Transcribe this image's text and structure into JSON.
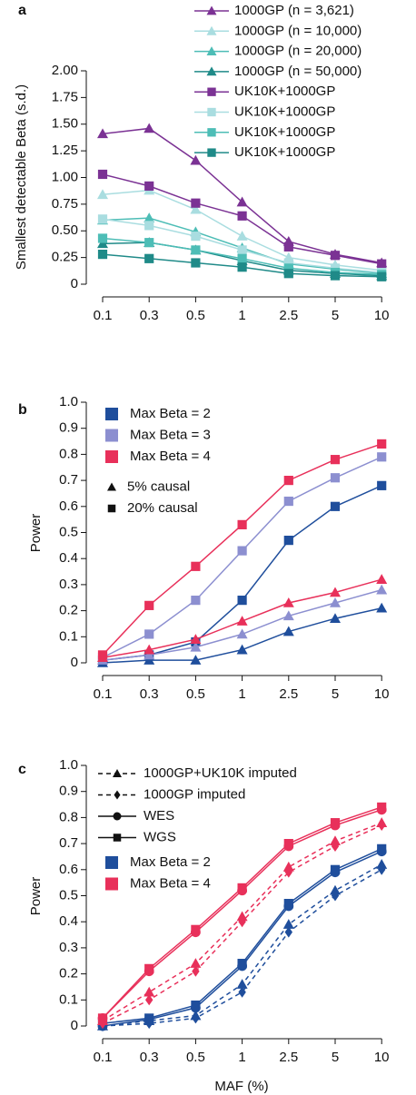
{
  "chart_data": [
    {
      "type": "line",
      "panel_label": "a",
      "y_label": "Smallest detectable Beta (s.d.)",
      "categories": [
        "0.1",
        "0.3",
        "0.5",
        "1",
        "2.5",
        "5",
        "10"
      ],
      "ylim": [
        0,
        2
      ],
      "yticks": [
        0,
        0.25,
        {
          "value": 0.5,
          "label": "0.50"
        },
        0.75,
        {
          "value": 1,
          "label": "1.00"
        },
        1.25,
        {
          "value": 1.5,
          "label": "1.50"
        },
        1.75,
        {
          "value": 2,
          "label": "2.00"
        }
      ],
      "series": [
        {
          "name": "1000GP (n = 3,621)",
          "color": "#7b3294",
          "marker": "triangle",
          "values": [
            1.41,
            1.46,
            1.16,
            0.77,
            0.4,
            0.28,
            0.2
          ]
        },
        {
          "name": "1000GP (n = 10,000)",
          "color": "#a9dde0",
          "marker": "triangle",
          "values": [
            0.84,
            0.88,
            0.7,
            0.45,
            0.25,
            0.18,
            0.13
          ]
        },
        {
          "name": "1000GP (n = 20,000)",
          "color": "#4dbdb6",
          "marker": "triangle",
          "values": [
            0.6,
            0.62,
            0.49,
            0.34,
            0.19,
            0.14,
            0.1
          ]
        },
        {
          "name": "1000GP (n = 50,000)",
          "color": "#1f8a88",
          "marker": "triangle",
          "values": [
            0.38,
            0.39,
            0.32,
            0.22,
            0.13,
            0.1,
            0.08
          ]
        },
        {
          "name": "UK10K+1000GP",
          "color": "#7b3294",
          "marker": "square",
          "values": [
            1.03,
            0.92,
            0.76,
            0.64,
            0.35,
            0.27,
            0.19
          ]
        },
        {
          "name": "UK10K+1000GP",
          "color": "#a9dde0",
          "marker": "square",
          "values": [
            0.61,
            0.55,
            0.45,
            0.32,
            0.2,
            0.15,
            0.11
          ]
        },
        {
          "name": "UK10K+1000GP",
          "color": "#4dbdb6",
          "marker": "square",
          "values": [
            0.43,
            0.39,
            0.32,
            0.24,
            0.15,
            0.11,
            0.09
          ]
        },
        {
          "name": "UK10K+1000GP",
          "color": "#1f8a88",
          "marker": "square",
          "values": [
            0.28,
            0.24,
            0.2,
            0.16,
            0.1,
            0.08,
            0.07
          ]
        }
      ]
    },
    {
      "type": "line",
      "panel_label": "b",
      "y_label": "Power",
      "categories": [
        "0.1",
        "0.3",
        "0.5",
        "1",
        "2.5",
        "5",
        "10"
      ],
      "ylim": [
        0,
        1
      ],
      "yticks": [
        0,
        0.1,
        0.2,
        0.3,
        0.4,
        0.5,
        0.6,
        0.7,
        0.8,
        0.9,
        {
          "value": 1,
          "label": "1.0"
        }
      ],
      "legend_colors": [
        {
          "label": "Max Beta = 2",
          "color": "#1f4e9c"
        },
        {
          "label": "Max Beta = 3",
          "color": "#8c8fd0"
        },
        {
          "label": "Max Beta = 4",
          "color": "#e8305a"
        }
      ],
      "legend_markers": [
        {
          "label": "5% causal",
          "marker": "triangle"
        },
        {
          "label": "20% causal",
          "marker": "square"
        }
      ],
      "series": [
        {
          "color": "#1f4e9c",
          "marker": "square",
          "values": [
            0.01,
            0.03,
            0.08,
            0.24,
            0.47,
            0.6,
            0.68
          ]
        },
        {
          "color": "#8c8fd0",
          "marker": "square",
          "values": [
            0.02,
            0.11,
            0.24,
            0.43,
            0.62,
            0.71,
            0.79
          ]
        },
        {
          "color": "#e8305a",
          "marker": "square",
          "values": [
            0.03,
            0.22,
            0.37,
            0.53,
            0.7,
            0.78,
            0.84
          ]
        },
        {
          "color": "#1f4e9c",
          "marker": "triangle",
          "values": [
            0,
            0.01,
            0.01,
            0.05,
            0.12,
            0.17,
            0.21
          ]
        },
        {
          "color": "#8c8fd0",
          "marker": "triangle",
          "values": [
            0.01,
            0.03,
            0.06,
            0.11,
            0.18,
            0.23,
            0.28
          ]
        },
        {
          "color": "#e8305a",
          "marker": "triangle",
          "values": [
            0.02,
            0.05,
            0.09,
            0.16,
            0.23,
            0.27,
            0.32
          ]
        }
      ]
    },
    {
      "type": "line",
      "panel_label": "c",
      "y_label": "Power",
      "x_label": "MAF (%)",
      "categories": [
        "0.1",
        "0.3",
        "0.5",
        "1",
        "2.5",
        "5",
        "10"
      ],
      "ylim": [
        0,
        1
      ],
      "yticks": [
        0,
        0.1,
        0.2,
        0.3,
        0.4,
        0.5,
        0.6,
        0.7,
        0.8,
        0.9,
        {
          "value": 1,
          "label": "1.0"
        }
      ],
      "legend_markers": [
        {
          "label": "1000GP+UK10K imputed",
          "marker": "triangle",
          "line": "dashed"
        },
        {
          "label": "1000GP imputed",
          "marker": "diamond",
          "line": "dashed"
        },
        {
          "label": "WES",
          "marker": "circle",
          "line": "solid"
        },
        {
          "label": "WGS",
          "marker": "square",
          "line": "solid"
        }
      ],
      "legend_colors": [
        {
          "label": "Max Beta = 2",
          "color": "#1f4e9c"
        },
        {
          "label": "Max Beta = 4",
          "color": "#e8305a"
        }
      ],
      "series": [
        {
          "color": "#1f4e9c",
          "marker": "square",
          "line": "solid",
          "values": [
            0.01,
            0.03,
            0.08,
            0.24,
            0.47,
            0.6,
            0.68
          ]
        },
        {
          "color": "#1f4e9c",
          "marker": "circle",
          "line": "solid",
          "values": [
            0,
            0.025,
            0.07,
            0.23,
            0.46,
            0.59,
            0.67
          ]
        },
        {
          "color": "#1f4e9c",
          "marker": "triangle",
          "line": "dashed",
          "values": [
            0,
            0.02,
            0.04,
            0.16,
            0.39,
            0.52,
            0.62
          ]
        },
        {
          "color": "#1f4e9c",
          "marker": "diamond",
          "line": "dashed",
          "values": [
            0,
            0.01,
            0.03,
            0.13,
            0.36,
            0.5,
            0.6
          ]
        },
        {
          "color": "#e8305a",
          "marker": "square",
          "line": "solid",
          "values": [
            0.03,
            0.22,
            0.37,
            0.53,
            0.7,
            0.78,
            0.84
          ]
        },
        {
          "color": "#e8305a",
          "marker": "circle",
          "line": "solid",
          "values": [
            0.03,
            0.21,
            0.36,
            0.52,
            0.69,
            0.77,
            0.83
          ]
        },
        {
          "color": "#e8305a",
          "marker": "triangle",
          "line": "dashed",
          "values": [
            0.02,
            0.13,
            0.24,
            0.42,
            0.61,
            0.71,
            0.78
          ]
        },
        {
          "color": "#e8305a",
          "marker": "diamond",
          "line": "dashed",
          "values": [
            0.01,
            0.1,
            0.21,
            0.4,
            0.59,
            0.69,
            0.77
          ]
        }
      ]
    }
  ]
}
